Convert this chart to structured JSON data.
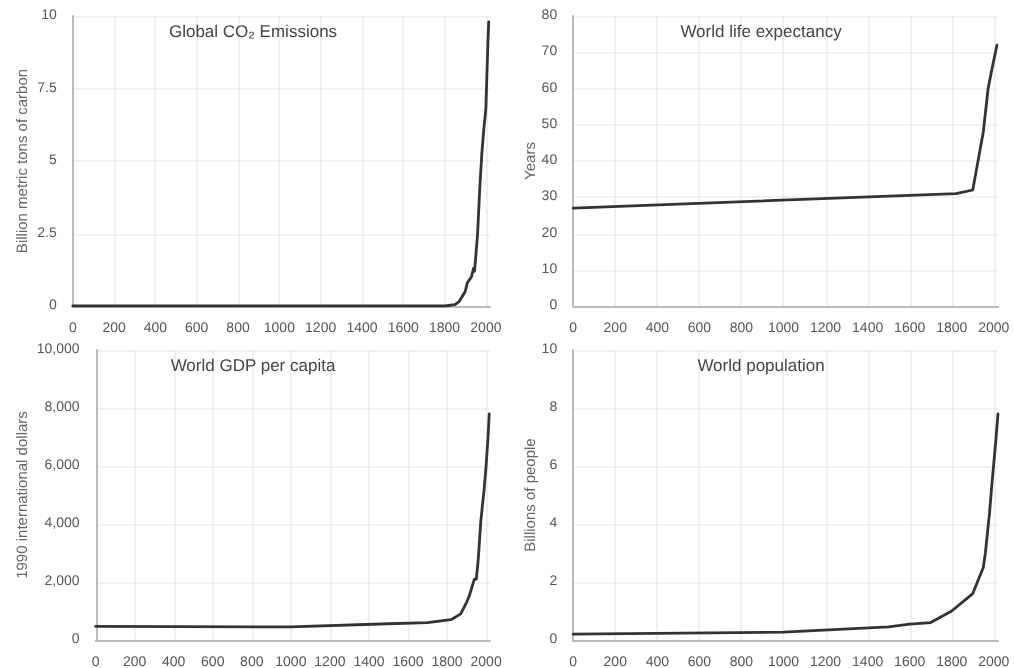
{
  "chart_data": [
    {
      "type": "line",
      "title": "Global CO₂ Emissions",
      "ylabel": "Billion metric tons of carbon",
      "xlim": [
        0,
        2020
      ],
      "xticks": [
        0,
        200,
        400,
        600,
        800,
        1000,
        1200,
        1400,
        1600,
        1800,
        2000
      ],
      "ylim": [
        0,
        10
      ],
      "yticks": [
        0,
        2.5,
        5,
        7.5,
        10
      ],
      "grid": true,
      "marker": "none",
      "line_style": "solid",
      "series": [
        {
          "color": "#333333",
          "x": [
            0,
            1750,
            1800,
            1850,
            1870,
            1900,
            1910,
            1920,
            1930,
            1940,
            1945,
            1950,
            1960,
            1970,
            1980,
            1990,
            2000,
            2010,
            2014
          ],
          "values": [
            0,
            0,
            0,
            0.05,
            0.15,
            0.5,
            0.8,
            0.9,
            1.0,
            1.3,
            1.2,
            1.6,
            2.5,
            4.0,
            5.2,
            6.1,
            6.8,
            9.1,
            9.8
          ]
        }
      ]
    },
    {
      "type": "line",
      "title": "World life expectancy",
      "ylabel": "Years",
      "xlim": [
        0,
        2020
      ],
      "xticks": [
        0,
        200,
        400,
        600,
        800,
        1000,
        1200,
        1400,
        1600,
        1800,
        2000
      ],
      "ylim": [
        0,
        80
      ],
      "yticks": [
        0,
        10,
        20,
        30,
        40,
        50,
        60,
        70,
        80
      ],
      "grid": true,
      "marker": "none",
      "line_style": "solid",
      "series": [
        {
          "color": "#333333",
          "x": [
            0,
            1820,
            1900,
            1950,
            1973,
            1990,
            2015
          ],
          "values": [
            27,
            31,
            32,
            48,
            60,
            65,
            72
          ]
        }
      ]
    },
    {
      "type": "line",
      "title": "World GDP per capita",
      "ylabel": "1990 international dollars",
      "xlim": [
        0,
        2020
      ],
      "xticks": [
        0,
        200,
        400,
        600,
        800,
        1000,
        1200,
        1400,
        1600,
        1800,
        2000
      ],
      "ylim": [
        0,
        10000
      ],
      "yticks": [
        0,
        {
          "value": 2000,
          "label": "2,000"
        },
        {
          "value": 4000,
          "label": "4,000"
        },
        {
          "value": 6000,
          "label": "6,000"
        },
        {
          "value": 8000,
          "label": "8,000"
        },
        {
          "value": 10000,
          "label": "10,000"
        }
      ],
      "grid": true,
      "marker": "none",
      "line_style": "solid",
      "series": [
        {
          "color": "#333333",
          "x": [
            0,
            1000,
            1500,
            1700,
            1820,
            1870,
            1900,
            1913,
            1940,
            1950,
            1960,
            1973,
            1990,
            2000,
            2010,
            2016
          ],
          "values": [
            470,
            450,
            560,
            600,
            700,
            900,
            1300,
            1500,
            2100,
            2100,
            2800,
            4100,
            5200,
            6000,
            7000,
            7800
          ]
        }
      ]
    },
    {
      "type": "line",
      "title": "World population",
      "ylabel": "Billions of people",
      "xlim": [
        0,
        2020
      ],
      "xticks": [
        0,
        200,
        400,
        600,
        800,
        1000,
        1200,
        1400,
        1600,
        1800,
        2000
      ],
      "ylim": [
        0,
        10
      ],
      "yticks": [
        0,
        2,
        4,
        6,
        8,
        10
      ],
      "grid": true,
      "marker": "none",
      "line_style": "solid",
      "series": [
        {
          "color": "#333333",
          "x": [
            0,
            1000,
            1500,
            1600,
            1700,
            1800,
            1900,
            1950,
            1960,
            1970,
            1980,
            1990,
            2000,
            2010,
            2020
          ],
          "values": [
            0.2,
            0.27,
            0.45,
            0.55,
            0.6,
            1.0,
            1.6,
            2.5,
            3.0,
            3.7,
            4.4,
            5.3,
            6.1,
            6.9,
            7.8
          ]
        }
      ]
    }
  ]
}
